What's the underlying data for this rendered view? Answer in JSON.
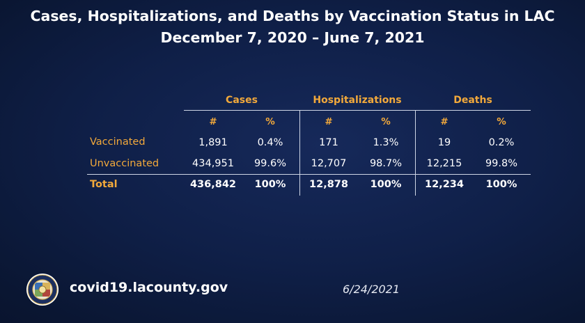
{
  "title": {
    "line1": "Cases, Hospitalizations, and Deaths by Vaccination Status in LAC",
    "line2": "December 7, 2020 – June 7, 2021"
  },
  "table": {
    "groups": [
      "Cases",
      "Hospitalizations",
      "Deaths"
    ],
    "subheaders": [
      "#",
      "%",
      "#",
      "%",
      "#",
      "%"
    ],
    "rows": [
      {
        "label": "Vaccinated",
        "values": [
          "1,891",
          "0.4%",
          "171",
          "1.3%",
          "19",
          "0.2%"
        ]
      },
      {
        "label": "Unvaccinated",
        "values": [
          "434,951",
          "99.6%",
          "12,707",
          "98.7%",
          "12,215",
          "99.8%"
        ]
      },
      {
        "label": "Total",
        "values": [
          "436,842",
          "100%",
          "12,878",
          "100%",
          "12,234",
          "100%"
        ]
      }
    ]
  },
  "footer": {
    "url": "covid19.lacounty.gov",
    "date": "6/24/2021"
  },
  "colors": {
    "accent": "#f2a93b",
    "background": "#0f1f47",
    "text": "#ffffff"
  },
  "icons": {
    "seal": "county-seal-icon"
  }
}
